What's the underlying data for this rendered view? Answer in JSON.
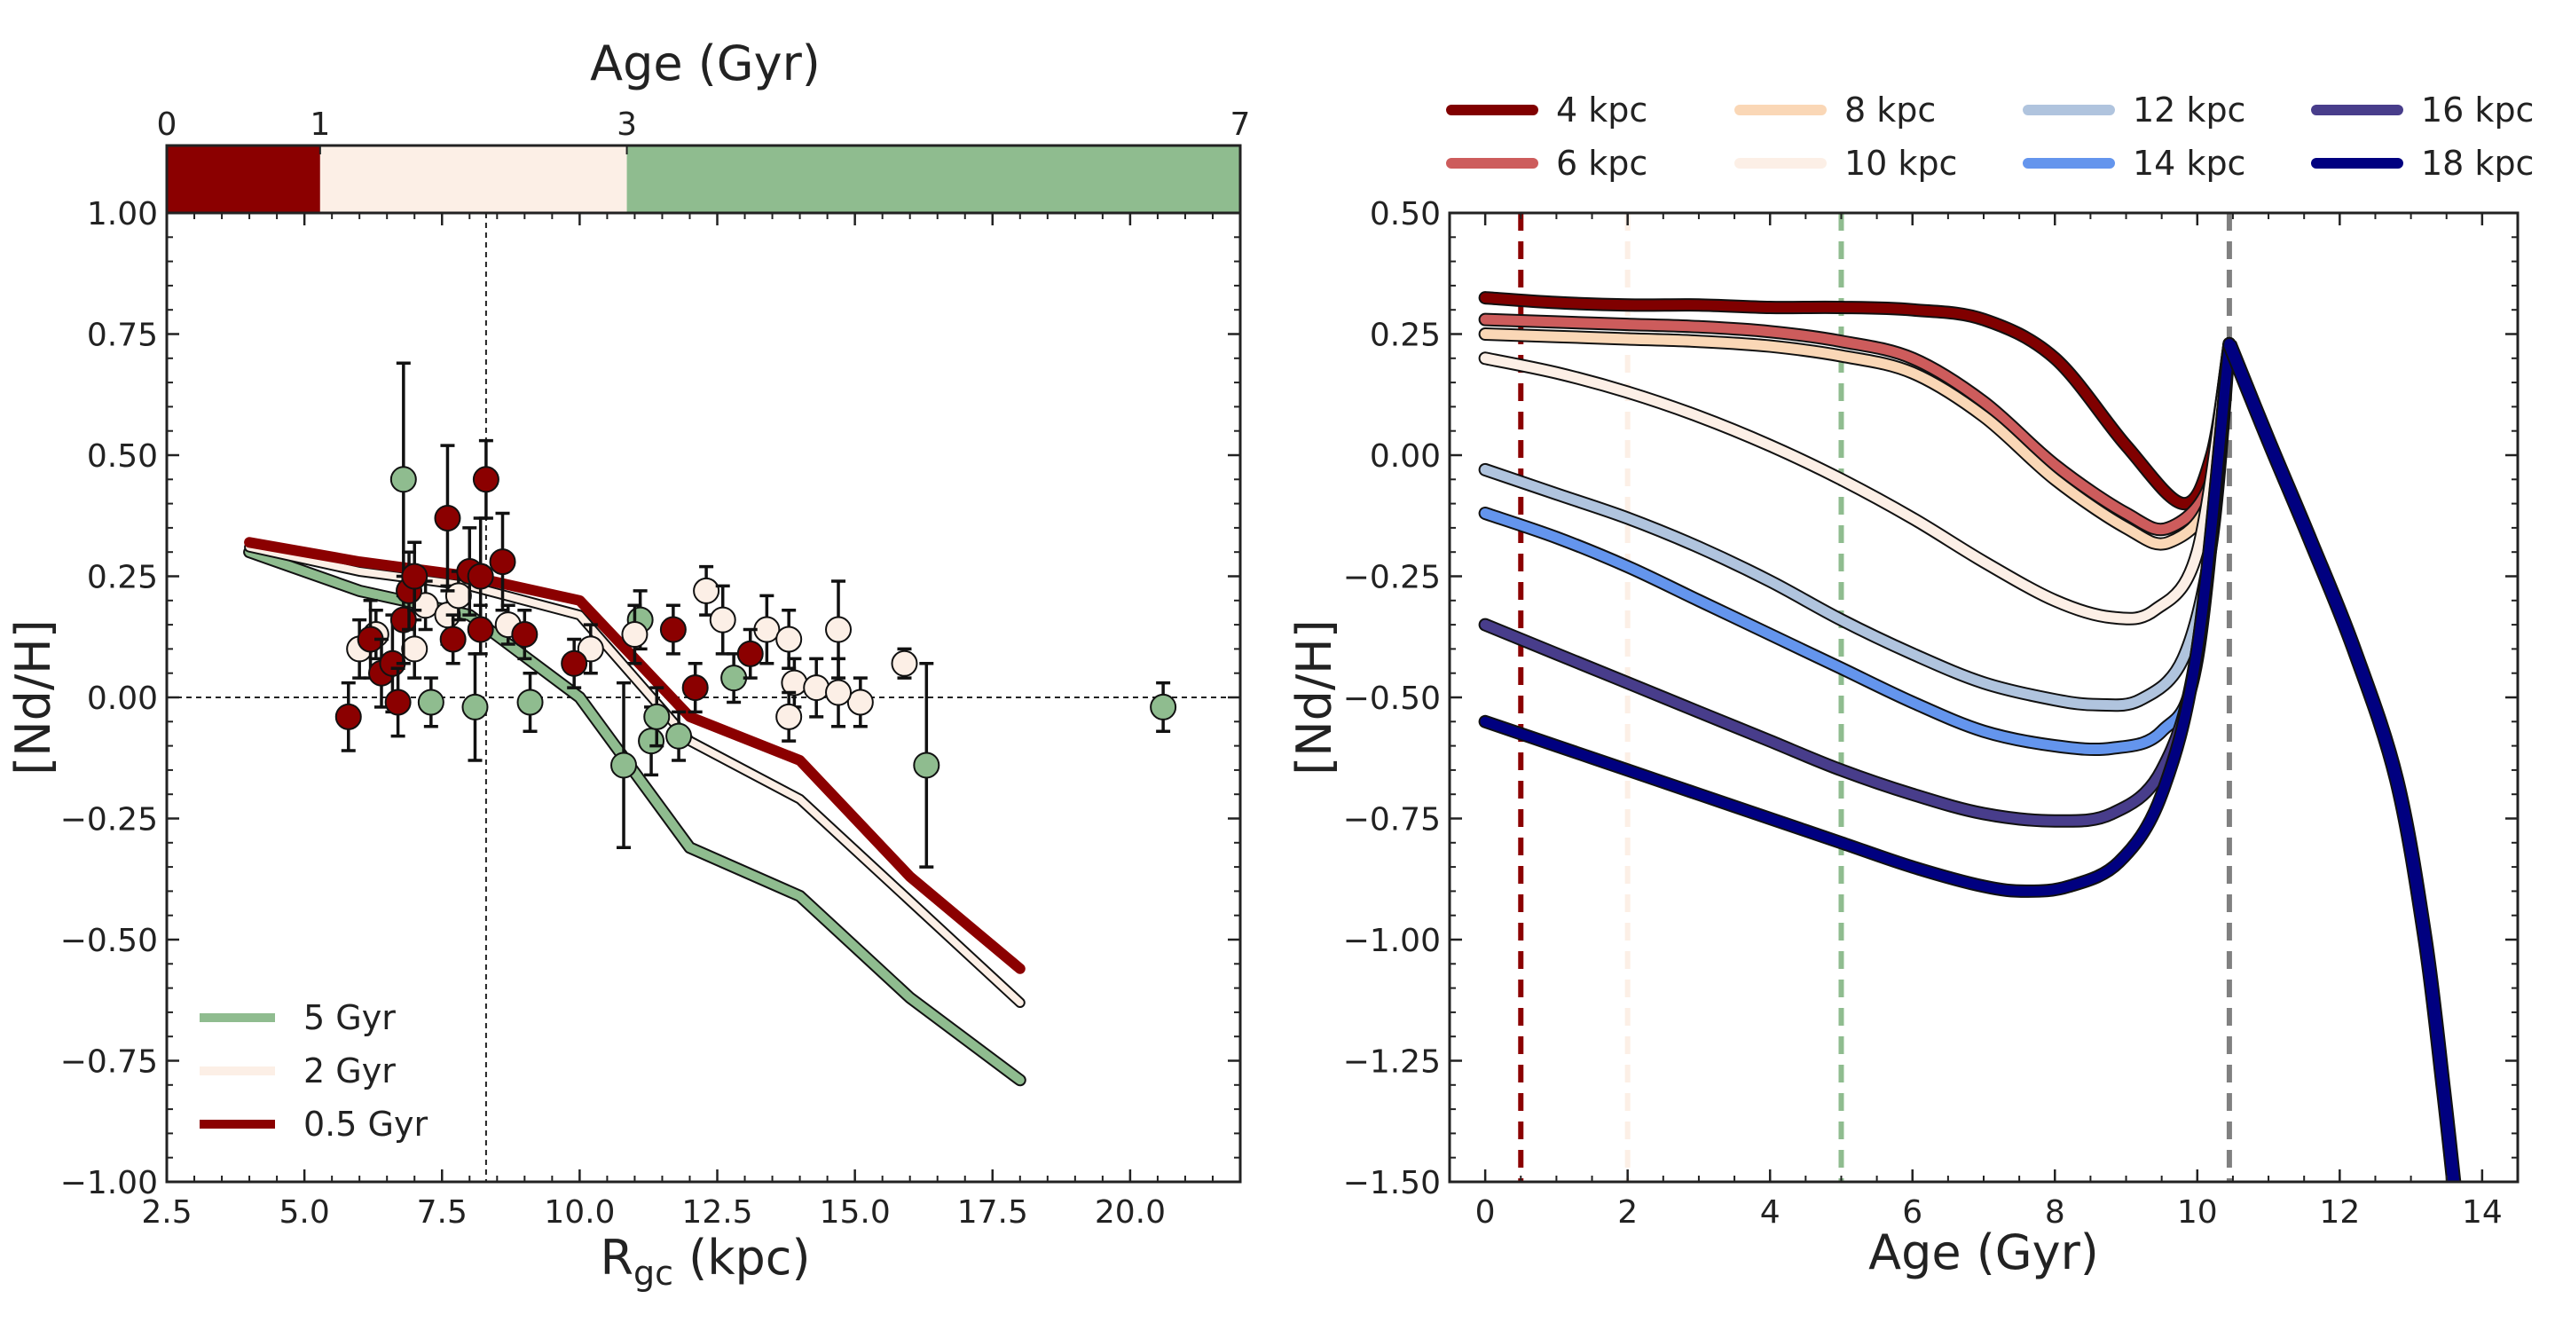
{
  "chart_data": [
    {
      "type": "scatter",
      "panel": "left",
      "xlabel": "R",
      "xlabel_sub": "gc",
      "xlabel_unit": " (kpc)",
      "ylabel": "[Nd/H]",
      "xlim": [
        2.5,
        22.0
      ],
      "ylim": [
        -1.0,
        1.0
      ],
      "xticks": [
        "2.5",
        "5.0",
        "7.5",
        "10.0",
        "12.5",
        "15.0",
        "17.5",
        "20.0"
      ],
      "yticks": [
        "−1.00",
        "−0.75",
        "−0.50",
        "−0.25",
        "0.00",
        "0.25",
        "0.50",
        "0.75",
        "1.00"
      ],
      "reference_lines": {
        "y": 0.0,
        "x": 8.3
      },
      "age_bar": {
        "title": "Age (Gyr)",
        "ticks": [
          "0",
          "1",
          "3",
          "7"
        ],
        "segments": [
          {
            "from": 0,
            "to": 1,
            "color": "#8B0000"
          },
          {
            "from": 1,
            "to": 3,
            "color": "#FCEFE6"
          },
          {
            "from": 3,
            "to": 7,
            "color": "#8FBC8F"
          }
        ]
      },
      "series": [
        {
          "name": "5 Gyr",
          "color": "#8FBC8F",
          "x": [
            4.0,
            6.0,
            8.0,
            10.0,
            12.0,
            14.0,
            16.0,
            18.0
          ],
          "y": [
            0.3,
            0.22,
            0.17,
            0.0,
            -0.31,
            -0.41,
            -0.62,
            -0.79
          ]
        },
        {
          "name": "2 Gyr",
          "color": "#FCEFE6",
          "x": [
            4.0,
            6.0,
            8.0,
            10.0,
            12.0,
            14.0,
            16.0,
            18.0
          ],
          "y": [
            0.31,
            0.26,
            0.23,
            0.17,
            -0.09,
            -0.21,
            -0.42,
            -0.63
          ]
        },
        {
          "name": "0.5 Gyr",
          "color": "#8B0000",
          "x": [
            4.0,
            6.0,
            8.0,
            10.0,
            12.0,
            14.0,
            16.0,
            18.0
          ],
          "y": [
            0.32,
            0.28,
            0.25,
            0.2,
            -0.04,
            -0.13,
            -0.37,
            -0.56
          ]
        }
      ],
      "points": [
        {
          "group": "0.5 Gyr",
          "x": 5.8,
          "y": -0.04,
          "err": 0.07
        },
        {
          "group": "0.5 Gyr",
          "x": 6.2,
          "y": 0.12,
          "err": 0.08
        },
        {
          "group": "0.5 Gyr",
          "x": 6.4,
          "y": 0.05,
          "err": 0.07
        },
        {
          "group": "0.5 Gyr",
          "x": 6.6,
          "y": 0.07,
          "err": 0.1
        },
        {
          "group": "0.5 Gyr",
          "x": 6.8,
          "y": 0.16,
          "err": 0.09
        },
        {
          "group": "0.5 Gyr",
          "x": 6.9,
          "y": 0.22,
          "err": 0.08
        },
        {
          "group": "0.5 Gyr",
          "x": 7.0,
          "y": 0.25,
          "err": 0.07
        },
        {
          "group": "0.5 Gyr",
          "x": 7.6,
          "y": 0.37,
          "err": 0.15
        },
        {
          "group": "0.5 Gyr",
          "x": 7.7,
          "y": 0.12,
          "err": 0.05
        },
        {
          "group": "0.5 Gyr",
          "x": 8.0,
          "y": 0.26,
          "err": 0.09
        },
        {
          "group": "0.5 Gyr",
          "x": 8.2,
          "y": 0.25,
          "err": 0.12
        },
        {
          "group": "0.5 Gyr",
          "x": 8.3,
          "y": 0.45,
          "err": 0.08
        },
        {
          "group": "0.5 Gyr",
          "x": 8.6,
          "y": 0.28,
          "err": 0.1
        },
        {
          "group": "0.5 Gyr",
          "x": 9.0,
          "y": 0.13,
          "err": 0.05
        },
        {
          "group": "0.5 Gyr",
          "x": 6.7,
          "y": -0.01,
          "err": 0.07
        },
        {
          "group": "0.5 Gyr",
          "x": 8.2,
          "y": 0.14,
          "err": 0.05
        },
        {
          "group": "0.5 Gyr",
          "x": 9.9,
          "y": 0.07,
          "err": 0.05
        },
        {
          "group": "0.5 Gyr",
          "x": 11.7,
          "y": 0.14,
          "err": 0.05
        },
        {
          "group": "0.5 Gyr",
          "x": 12.1,
          "y": 0.02,
          "err": 0.05
        },
        {
          "group": "0.5 Gyr",
          "x": 13.1,
          "y": 0.09,
          "err": 0.05
        },
        {
          "group": "2 Gyr",
          "x": 6.0,
          "y": 0.1,
          "err": 0.06
        },
        {
          "group": "2 Gyr",
          "x": 6.3,
          "y": 0.13,
          "err": 0.05
        },
        {
          "group": "2 Gyr",
          "x": 7.0,
          "y": 0.1,
          "err": 0.06
        },
        {
          "group": "2 Gyr",
          "x": 7.2,
          "y": 0.19,
          "err": 0.05
        },
        {
          "group": "2 Gyr",
          "x": 7.6,
          "y": 0.17,
          "err": 0.06
        },
        {
          "group": "2 Gyr",
          "x": 7.8,
          "y": 0.21,
          "err": 0.05
        },
        {
          "group": "2 Gyr",
          "x": 8.7,
          "y": 0.15,
          "err": 0.04
        },
        {
          "group": "2 Gyr",
          "x": 10.2,
          "y": 0.1,
          "err": 0.05
        },
        {
          "group": "2 Gyr",
          "x": 11.0,
          "y": 0.13,
          "err": 0.06
        },
        {
          "group": "2 Gyr",
          "x": 12.3,
          "y": 0.22,
          "err": 0.05
        },
        {
          "group": "2 Gyr",
          "x": 12.6,
          "y": 0.16,
          "err": 0.07
        },
        {
          "group": "2 Gyr",
          "x": 13.4,
          "y": 0.14,
          "err": 0.07
        },
        {
          "group": "2 Gyr",
          "x": 13.8,
          "y": 0.12,
          "err": 0.06
        },
        {
          "group": "2 Gyr",
          "x": 13.9,
          "y": 0.03,
          "err": 0.05
        },
        {
          "group": "2 Gyr",
          "x": 14.3,
          "y": 0.02,
          "err": 0.06
        },
        {
          "group": "2 Gyr",
          "x": 14.7,
          "y": 0.14,
          "err": 0.1
        },
        {
          "group": "2 Gyr",
          "x": 15.1,
          "y": -0.01,
          "err": 0.05
        },
        {
          "group": "2 Gyr",
          "x": 15.9,
          "y": 0.07,
          "err": 0.03
        },
        {
          "group": "2 Gyr",
          "x": 13.8,
          "y": -0.04,
          "err": 0.05
        },
        {
          "group": "2 Gyr",
          "x": 14.7,
          "y": 0.01,
          "err": 0.07
        },
        {
          "group": "5 Gyr",
          "x": 6.8,
          "y": 0.45,
          "err": 0.24
        },
        {
          "group": "5 Gyr",
          "x": 7.3,
          "y": -0.01,
          "err": 0.05
        },
        {
          "group": "5 Gyr",
          "x": 8.1,
          "y": -0.02,
          "err": 0.11
        },
        {
          "group": "5 Gyr",
          "x": 9.1,
          "y": -0.01,
          "err": 0.06
        },
        {
          "group": "5 Gyr",
          "x": 10.8,
          "y": -0.14,
          "err": 0.17
        },
        {
          "group": "5 Gyr",
          "x": 11.1,
          "y": 0.16,
          "err": 0.06
        },
        {
          "group": "5 Gyr",
          "x": 11.3,
          "y": -0.09,
          "err": 0.07
        },
        {
          "group": "5 Gyr",
          "x": 11.4,
          "y": -0.04,
          "err": 0.06
        },
        {
          "group": "5 Gyr",
          "x": 11.8,
          "y": -0.08,
          "err": 0.05
        },
        {
          "group": "5 Gyr",
          "x": 12.8,
          "y": 0.04,
          "err": 0.05
        },
        {
          "group": "5 Gyr",
          "x": 16.3,
          "y": -0.14,
          "err": 0.21
        },
        {
          "group": "5 Gyr",
          "x": 20.6,
          "y": -0.02,
          "err": 0.05
        }
      ],
      "legend": {
        "placement": "lower-left",
        "entries": [
          "5 Gyr",
          "2 Gyr",
          "0.5 Gyr"
        ]
      }
    },
    {
      "type": "line",
      "panel": "right",
      "xlabel": "Age (Gyr)",
      "ylabel": "[Nd/H]",
      "xlim": [
        -0.5,
        14.5
      ],
      "ylim": [
        -1.5,
        0.5
      ],
      "xticks": [
        "0",
        "2",
        "4",
        "6",
        "8",
        "10",
        "12",
        "14"
      ],
      "yticks": [
        "−1.50",
        "−1.25",
        "−1.00",
        "−0.75",
        "−0.50",
        "−0.25",
        "0.00",
        "0.25",
        "0.50"
      ],
      "vertical_lines": [
        {
          "x": 0.5,
          "color": "#8B0000"
        },
        {
          "x": 2.0,
          "color": "#FCEFE6"
        },
        {
          "x": 5.0,
          "color": "#8FBC8F"
        },
        {
          "x": 10.45,
          "color": "#808080"
        }
      ],
      "peak": {
        "x": 10.45,
        "y": 0.23
      },
      "tail": {
        "x": [
          10.45,
          11.0,
          11.6,
          12.2,
          12.8,
          13.2,
          13.45,
          13.6
        ],
        "y": [
          0.23,
          0.03,
          -0.18,
          -0.4,
          -0.67,
          -1.0,
          -1.3,
          -1.5
        ]
      },
      "series": [
        {
          "name": "4 kpc",
          "color": "#800000",
          "x": [
            0,
            1,
            2,
            3,
            4,
            5,
            6,
            7,
            8,
            9,
            9.8,
            10.2,
            10.45
          ],
          "y": [
            0.325,
            0.315,
            0.31,
            0.31,
            0.305,
            0.305,
            0.3,
            0.28,
            0.2,
            0.02,
            -0.1,
            0.0,
            0.23
          ]
        },
        {
          "name": "6 kpc",
          "color": "#CD5C5C",
          "x": [
            0,
            1,
            2,
            3,
            4,
            5,
            6,
            7,
            8,
            9,
            9.6,
            10.2,
            10.45
          ],
          "y": [
            0.28,
            0.275,
            0.27,
            0.265,
            0.255,
            0.235,
            0.2,
            0.11,
            -0.02,
            -0.12,
            -0.15,
            -0.05,
            0.23
          ]
        },
        {
          "name": "8 kpc",
          "color": "#FAD7B6",
          "x": [
            0,
            1,
            2,
            3,
            4,
            5,
            6,
            7,
            8,
            9,
            9.6,
            10.2,
            10.45
          ],
          "y": [
            0.25,
            0.245,
            0.24,
            0.235,
            0.225,
            0.205,
            0.17,
            0.08,
            -0.05,
            -0.15,
            -0.18,
            -0.08,
            0.23
          ]
        },
        {
          "name": "10 kpc",
          "color": "#FCEFE6",
          "x": [
            0,
            1,
            2,
            3,
            4,
            5,
            6,
            7,
            8,
            8.8,
            9.4,
            10.0,
            10.45
          ],
          "y": [
            0.2,
            0.17,
            0.13,
            0.08,
            0.02,
            -0.05,
            -0.13,
            -0.22,
            -0.3,
            -0.335,
            -0.32,
            -0.2,
            0.23
          ]
        },
        {
          "name": "12 kpc",
          "color": "#B0C4DE",
          "x": [
            0,
            1,
            2,
            3,
            4,
            5,
            6,
            7,
            8,
            8.6,
            9.2,
            9.8,
            10.2,
            10.45
          ],
          "y": [
            -0.03,
            -0.08,
            -0.13,
            -0.19,
            -0.26,
            -0.34,
            -0.41,
            -0.47,
            -0.505,
            -0.515,
            -0.505,
            -0.42,
            -0.18,
            0.23
          ]
        },
        {
          "name": "14 kpc",
          "color": "#6495ED",
          "x": [
            0,
            1,
            2,
            3,
            4,
            5,
            6,
            7,
            8,
            8.8,
            9.5,
            10.0,
            10.45
          ],
          "y": [
            -0.12,
            -0.17,
            -0.23,
            -0.3,
            -0.37,
            -0.44,
            -0.51,
            -0.57,
            -0.6,
            -0.605,
            -0.57,
            -0.42,
            0.23
          ]
        },
        {
          "name": "16 kpc",
          "color": "#483D8B",
          "x": [
            0,
            1,
            2,
            3,
            4,
            5,
            6,
            7,
            8,
            8.8,
            9.5,
            10.0,
            10.45
          ],
          "y": [
            -0.35,
            -0.41,
            -0.47,
            -0.53,
            -0.59,
            -0.65,
            -0.7,
            -0.74,
            -0.755,
            -0.74,
            -0.65,
            -0.4,
            0.23
          ]
        },
        {
          "name": "18 kpc",
          "color": "#000080",
          "x": [
            0,
            1,
            2,
            3,
            4,
            5,
            6,
            7,
            7.6,
            8.2,
            8.9,
            9.5,
            10.0,
            10.45
          ],
          "y": [
            -0.55,
            -0.6,
            -0.65,
            -0.7,
            -0.75,
            -0.8,
            -0.85,
            -0.89,
            -0.9,
            -0.89,
            -0.84,
            -0.7,
            -0.4,
            0.23
          ]
        }
      ],
      "legend": {
        "placement": "top",
        "entries": [
          "4 kpc",
          "6 kpc",
          "8 kpc",
          "10 kpc",
          "12 kpc",
          "14 kpc",
          "16 kpc",
          "18 kpc"
        ]
      }
    }
  ]
}
